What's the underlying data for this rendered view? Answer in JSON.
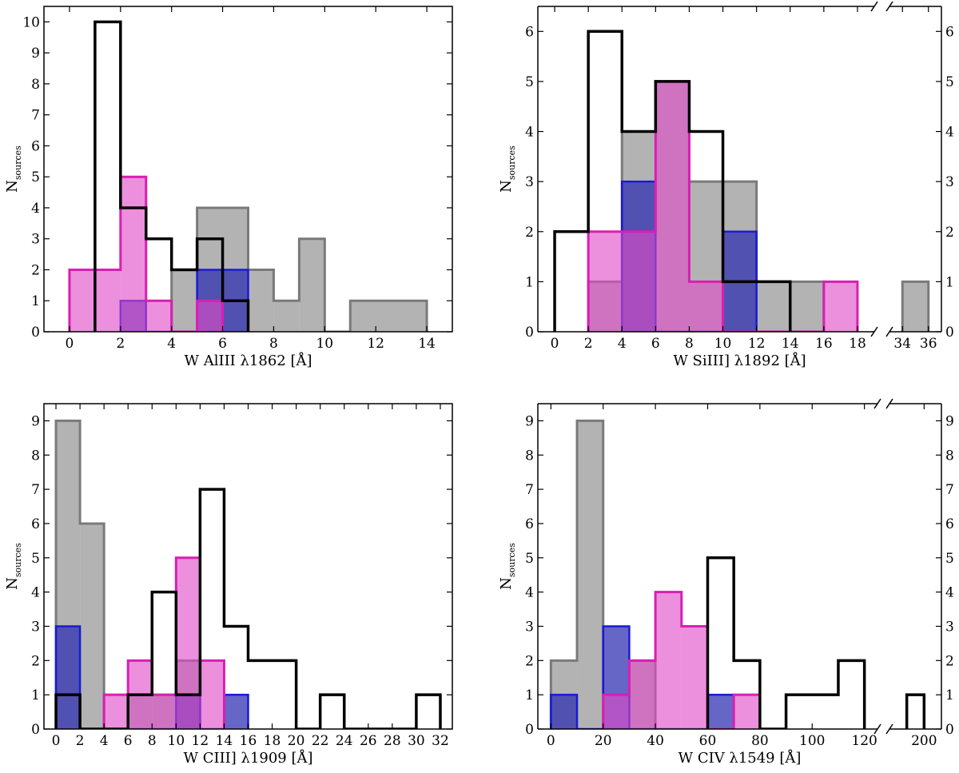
{
  "chart_data": [
    {
      "type": "bar",
      "panel": "top-left",
      "xlabel": "W AlIII λ1862  [Å]",
      "ylabel": "N",
      "ylabel_sub": "sources",
      "xlim": [
        -1,
        15
      ],
      "ylim": [
        0,
        10.5
      ],
      "xticks": [
        "0",
        "2",
        "4",
        "6",
        "8",
        "10",
        "12",
        "14"
      ],
      "yticks": [
        "0",
        "1",
        "2",
        "3",
        "4",
        "5",
        "6",
        "7",
        "8",
        "9",
        "10"
      ],
      "series": [
        {
          "color": "gray",
          "edges": [
            4,
            5,
            7,
            8,
            9,
            10,
            11,
            14
          ],
          "counts": [
            2,
            4,
            2,
            1,
            3,
            0,
            1
          ]
        },
        {
          "color": "blue",
          "edges": [
            2,
            3,
            5,
            7
          ],
          "counts": [
            1,
            0,
            2
          ]
        },
        {
          "color": "magenta",
          "edges": [
            0,
            2,
            3,
            4,
            5,
            6
          ],
          "counts": [
            2,
            5,
            1,
            0,
            1
          ]
        },
        {
          "color": "black",
          "edges": [
            1,
            2,
            3,
            4,
            5,
            6,
            7
          ],
          "counts": [
            10,
            4,
            3,
            2,
            3,
            1
          ]
        }
      ]
    },
    {
      "type": "bar",
      "panel": "top-right",
      "xlabel": "W SiIII] λ1892  [Å]",
      "ylabel": "N",
      "ylabel_sub": "sources",
      "xlim": [
        -1,
        19
      ],
      "break_xlim": [
        33,
        37
      ],
      "ylim": [
        0,
        6.5
      ],
      "xticks": [
        "0",
        "2",
        "4",
        "6",
        "8",
        "10",
        "12",
        "14",
        "16",
        "18"
      ],
      "break_xticks": [
        "34",
        "36"
      ],
      "yticks": [
        "0",
        "1",
        "2",
        "3",
        "4",
        "5",
        "6"
      ],
      "series": [
        {
          "color": "gray",
          "edges": [
            2,
            4,
            6,
            8,
            10,
            12,
            14,
            16
          ],
          "counts": [
            1,
            4,
            5,
            3,
            3,
            1,
            1
          ]
        },
        {
          "color": "blue",
          "edges": [
            4,
            6,
            8,
            10,
            12
          ],
          "counts": [
            3,
            0,
            0,
            2
          ]
        },
        {
          "color": "magenta",
          "edges": [
            2,
            4,
            6,
            8,
            10,
            12,
            14,
            16,
            18
          ],
          "counts": [
            2,
            2,
            5,
            1,
            0,
            0,
            0,
            1
          ]
        },
        {
          "color": "black",
          "edges": [
            0,
            2,
            4,
            6,
            8,
            10,
            12,
            14
          ],
          "counts": [
            2,
            6,
            4,
            5,
            4,
            1,
            1
          ]
        }
      ],
      "break_series": [
        {
          "color": "gray",
          "edges": [
            34,
            36
          ],
          "counts": [
            1
          ]
        }
      ]
    },
    {
      "type": "bar",
      "panel": "bottom-left",
      "xlabel": "W CIII] λ1909  [Å]",
      "ylabel": "N",
      "ylabel_sub": "sources",
      "xlim": [
        -1,
        33
      ],
      "ylim": [
        0,
        9.5
      ],
      "xticks": [
        "0",
        "2",
        "4",
        "6",
        "8",
        "10",
        "12",
        "14",
        "16",
        "18",
        "20",
        "22",
        "24",
        "26",
        "28",
        "30",
        "32"
      ],
      "yticks": [
        "0",
        "1",
        "2",
        "3",
        "4",
        "5",
        "6",
        "7",
        "8",
        "9"
      ],
      "series": [
        {
          "color": "gray",
          "edges": [
            0,
            2,
            4,
            6,
            8,
            10,
            12
          ],
          "counts": [
            9,
            6,
            0,
            1,
            1,
            2
          ]
        },
        {
          "color": "blue",
          "edges": [
            0,
            2,
            4,
            10,
            12,
            14,
            16
          ],
          "counts": [
            3,
            0,
            0,
            1,
            0,
            1
          ]
        },
        {
          "color": "magenta",
          "edges": [
            4,
            6,
            8,
            10,
            12,
            14
          ],
          "counts": [
            1,
            2,
            1,
            5,
            2
          ]
        },
        {
          "color": "black",
          "edges": [
            0,
            2,
            4,
            6,
            8,
            10,
            12,
            14,
            16,
            18,
            20,
            22,
            24,
            26,
            28,
            30,
            32
          ],
          "counts": [
            1,
            0,
            0,
            1,
            4,
            1,
            7,
            3,
            2,
            2,
            0,
            1,
            0,
            0,
            0,
            1
          ]
        }
      ]
    },
    {
      "type": "bar",
      "panel": "bottom-right",
      "xlabel": "W CIV λ1549  [Å]",
      "ylabel": "N",
      "ylabel_sub": "sources",
      "xlim": [
        -5,
        125
      ],
      "break_xlim": [
        180,
        210
      ],
      "ylim": [
        0,
        9.5
      ],
      "xticks": [
        "0",
        "20",
        "40",
        "60",
        "80",
        "100",
        "120"
      ],
      "break_xticks": [
        "200"
      ],
      "yticks": [
        "0",
        "1",
        "2",
        "3",
        "4",
        "5",
        "6",
        "7",
        "8",
        "9"
      ],
      "series": [
        {
          "color": "gray",
          "edges": [
            0,
            10,
            20,
            30,
            40
          ],
          "counts": [
            2,
            9,
            0,
            2
          ]
        },
        {
          "color": "blue",
          "edges": [
            0,
            10,
            20,
            30,
            60,
            70
          ],
          "counts": [
            1,
            0,
            3,
            0,
            1
          ]
        },
        {
          "color": "magenta",
          "edges": [
            20,
            30,
            40,
            50,
            60,
            70,
            80
          ],
          "counts": [
            1,
            2,
            4,
            3,
            0,
            1
          ]
        },
        {
          "color": "black",
          "edges": [
            60,
            70,
            80,
            90,
            110,
            120
          ],
          "counts": [
            5,
            2,
            0,
            1,
            2
          ]
        }
      ],
      "break_series": [
        {
          "color": "black",
          "edges": [
            190,
            200
          ],
          "counts": [
            1
          ]
        }
      ]
    }
  ],
  "colors": {
    "gray_fill": "#b3b3b3",
    "gray_edge": "#7a7a7a",
    "blue_fill": "#2b2bb0",
    "blue_edge": "#1a1ad6",
    "magenta_fill": "#e04bc8",
    "magenta_edge": "#d81fb4",
    "black_edge": "#000000"
  }
}
